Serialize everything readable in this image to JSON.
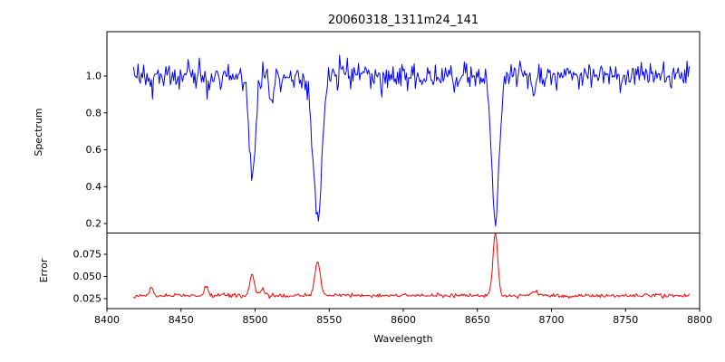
{
  "title": "20060318_1311m24_141",
  "axes": {
    "xlabel": "Wavelength",
    "spectrum_ylabel": "Spectrum",
    "error_ylabel": "Error"
  },
  "xticks": [
    8400,
    8450,
    8500,
    8550,
    8600,
    8650,
    8700,
    8750,
    8800
  ],
  "xtick_labels": [
    "8400",
    "8450",
    "8500",
    "8550",
    "8600",
    "8650",
    "8700",
    "8750",
    "8800"
  ],
  "chart_data": [
    {
      "type": "line",
      "panel": "spectrum",
      "ylabel": "Spectrum",
      "color": "#0000ff",
      "xlim": [
        8400,
        8800
      ],
      "ylim": [
        0.1485,
        1.2405
      ],
      "x_range_data": [
        8418,
        8793
      ],
      "n_points": 500,
      "yticks": [
        0.2,
        0.4,
        0.6,
        0.8,
        1.0
      ],
      "ytick_labels": [
        "0.2",
        "0.4",
        "0.6",
        "0.8",
        "1.0"
      ],
      "continuum": 1.0,
      "noise_sigma": 0.036,
      "noise_seed": 20060318,
      "absorption_lines": [
        {
          "center": 8430.0,
          "depth": 0.07,
          "sigma": 1.2
        },
        {
          "center": 8468.0,
          "depth": 0.08,
          "sigma": 1.3
        },
        {
          "center": 8498.0,
          "depth": 0.57,
          "sigma": 2.2
        },
        {
          "center": 8511.0,
          "depth": 0.13,
          "sigma": 1.2
        },
        {
          "center": 8542.1,
          "depth": 0.78,
          "sigma": 2.8
        },
        {
          "center": 8662.1,
          "depth": 0.81,
          "sigma": 2.4
        },
        {
          "center": 8688.0,
          "depth": 0.07,
          "sigma": 1.5
        }
      ]
    },
    {
      "type": "line",
      "panel": "error",
      "ylabel": "Error",
      "color": "#ff0000",
      "xlim": [
        8400,
        8800
      ],
      "ylim": [
        0.0138,
        0.099
      ],
      "x_range_data": [
        8418,
        8793
      ],
      "n_points": 500,
      "yticks": [
        0.025,
        0.05,
        0.075
      ],
      "ytick_labels": [
        "0.025",
        "0.050",
        "0.075"
      ],
      "baseline": 0.0285,
      "noise_sigma": 0.0012,
      "noise_seed": 1311141,
      "peaks": [
        {
          "center": 8430.0,
          "amplitude": 0.009,
          "sigma": 1.2
        },
        {
          "center": 8467.0,
          "amplitude": 0.011,
          "sigma": 1.3
        },
        {
          "center": 8498.0,
          "amplitude": 0.024,
          "sigma": 1.6
        },
        {
          "center": 8505.0,
          "amplitude": 0.007,
          "sigma": 1.5
        },
        {
          "center": 8542.1,
          "amplitude": 0.039,
          "sigma": 1.8
        },
        {
          "center": 8662.1,
          "amplitude": 0.072,
          "sigma": 1.6
        },
        {
          "center": 8688.0,
          "amplitude": 0.004,
          "sigma": 2.0
        }
      ]
    }
  ]
}
